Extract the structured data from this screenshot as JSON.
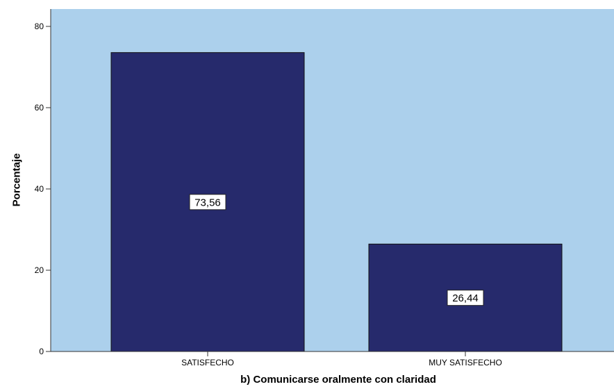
{
  "chart_data": {
    "type": "bar",
    "categories": [
      "SATISFECHO",
      "MUY SATISFECHO"
    ],
    "values": [
      73.56,
      26.44
    ],
    "value_labels": [
      "73,56",
      "26,44"
    ],
    "xlabel": "b) Comunicarse oralmente con claridad",
    "ylabel": "Porcentaje",
    "ylim": [
      0,
      80
    ],
    "yticks": [
      0,
      20,
      40,
      60,
      80
    ],
    "ytick_labels": [
      "0",
      "20",
      "40",
      "60",
      "80"
    ],
    "grid": false,
    "legend": "none",
    "colors": {
      "plot_background": "#acd0ec",
      "bar_fill": "#262a6c",
      "bar_stroke": "#111111",
      "axis": "#333333"
    }
  }
}
